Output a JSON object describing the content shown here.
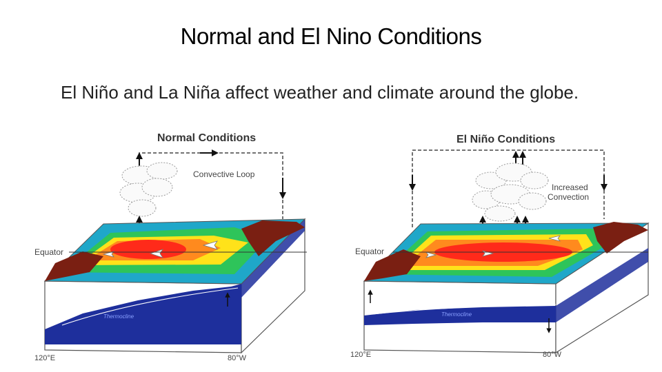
{
  "slide": {
    "title": "Normal and El Nino Conditions",
    "body": "El Niño and La Niña affect weather and climate around the globe."
  },
  "normal_panel": {
    "title": "Normal Conditions",
    "loop_label": "Convective Loop",
    "equator_label": "Equator",
    "west_lon": "120°E",
    "east_lon": "80°W",
    "thermocline_label": "Thermocline"
  },
  "elnino_panel": {
    "title": "El Niño Conditions",
    "convection_label_1": "Increased",
    "convection_label_2": "Convection",
    "equator_label": "Equator",
    "west_lon": "120°E",
    "east_lon": "80°W",
    "thermocline_label": "Thermocline"
  },
  "colors": {
    "land": "#7a1f12",
    "warm_core": "#ff2a1a",
    "warm": "#ff8a1e",
    "mid": "#ffe21a",
    "cool": "#2ec45a",
    "cold": "#1fa7c9",
    "deep": "#1e2f9c"
  }
}
